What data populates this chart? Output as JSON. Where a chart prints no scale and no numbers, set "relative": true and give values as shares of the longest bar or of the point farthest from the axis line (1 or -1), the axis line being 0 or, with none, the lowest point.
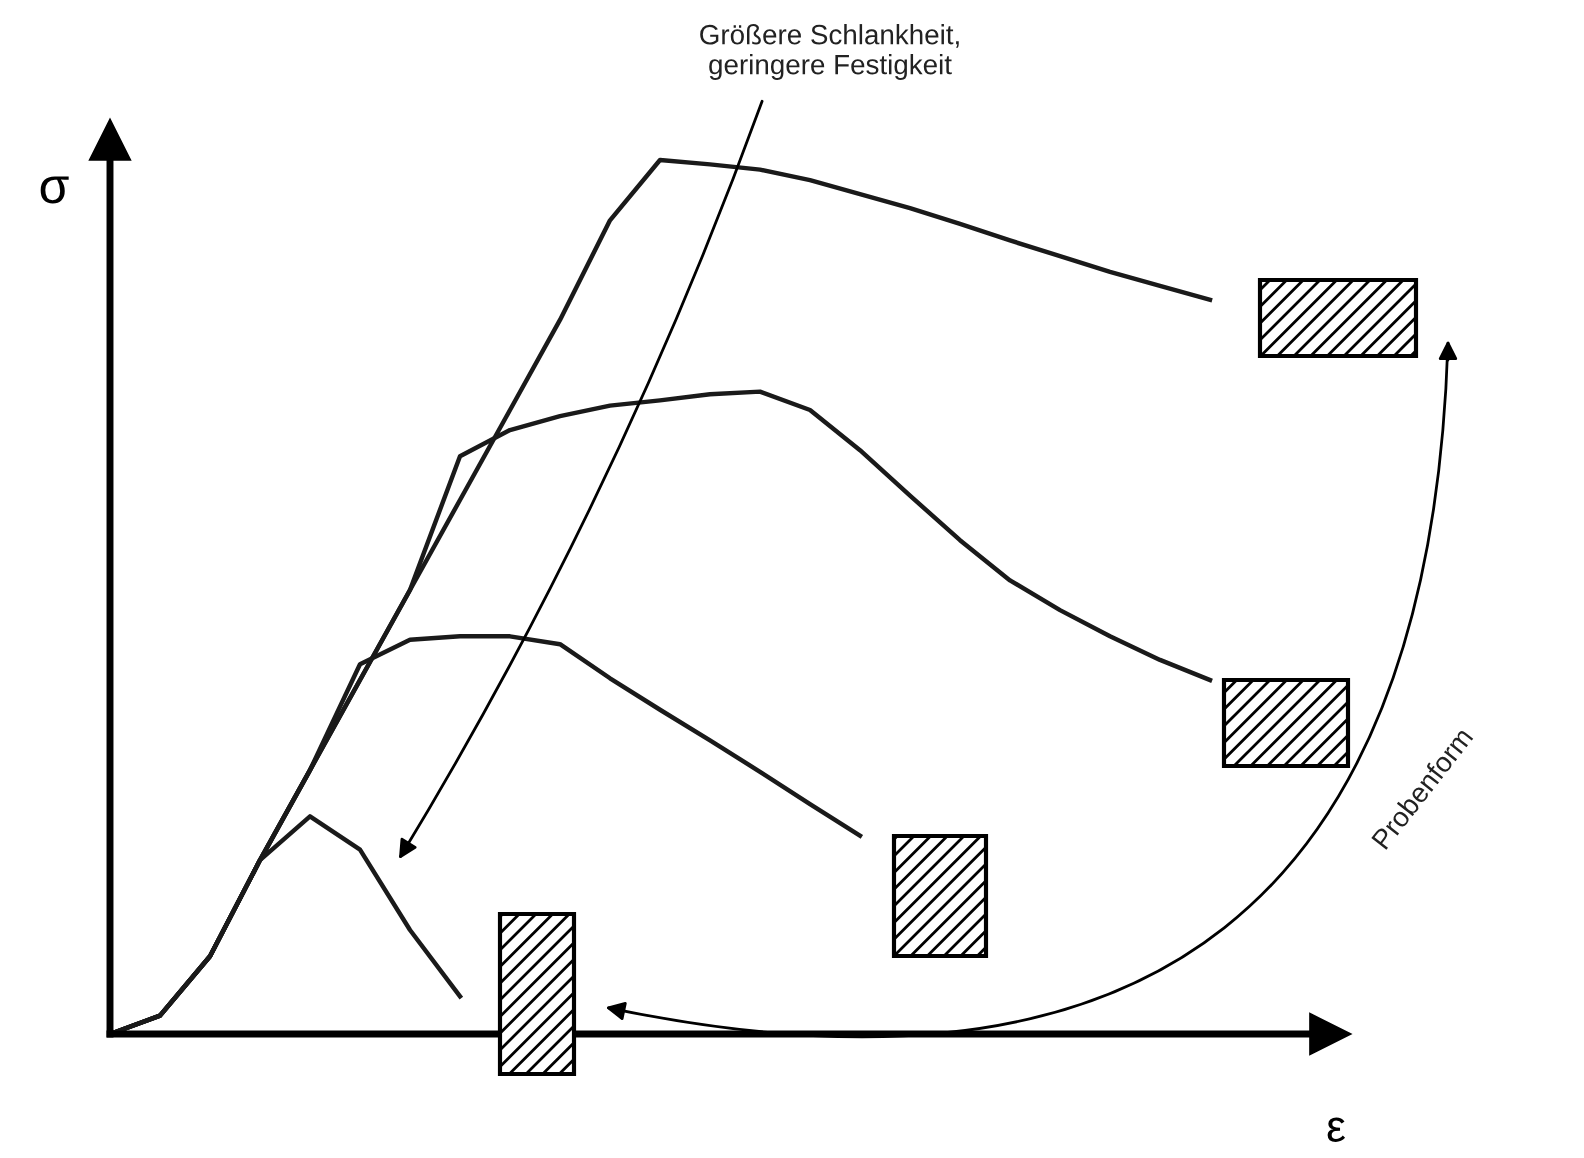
{
  "chart_data": {
    "type": "line",
    "relative": true,
    "xlabel": "ε",
    "ylabel": "σ",
    "legend": false,
    "marker": "none",
    "line_style": "solid",
    "categories": [
      null,
      null,
      null,
      null,
      null,
      null,
      null,
      null,
      null,
      null,
      null,
      null,
      null,
      null,
      null,
      null,
      null,
      null,
      null,
      null,
      null,
      null,
      null
    ],
    "series": [
      {
        "color": "#1a1a1a",
        "values": [
          0,
          0.021,
          0.089,
          0.199,
          0.302,
          0.405,
          0.508,
          0.611,
          0.714,
          0.817,
          0.931,
          1,
          0.995,
          0.989,
          0.977,
          0.961,
          0.945,
          0.927,
          0.908,
          0.89,
          0.872,
          0.856,
          0.84
        ]
      },
      {
        "color": "#1a1a1a",
        "values": [
          0,
          0.021,
          0.089,
          0.199,
          0.302,
          0.405,
          0.508,
          0.661,
          0.691,
          0.707,
          0.719,
          0.725,
          0.732,
          0.735,
          0.714,
          0.668,
          0.616,
          0.565,
          0.519,
          0.485,
          0.455,
          0.428,
          0.405
        ]
      },
      {
        "color": "#1a1a1a",
        "values": [
          0,
          0.021,
          0.089,
          0.199,
          0.302,
          0.423,
          0.451,
          0.455,
          0.455,
          0.446,
          0.407,
          0.371,
          0.336,
          0.3,
          0.263,
          0.227,
          null,
          null,
          null,
          null,
          null,
          null,
          null
        ]
      },
      {
        "color": "#1a1a1a",
        "values": [
          0,
          0.021,
          0.089,
          0.199,
          0.249,
          0.211,
          0.119,
          0.043,
          null,
          null,
          null,
          null,
          null,
          null,
          null,
          null,
          null,
          null,
          null,
          null,
          null,
          null,
          null
        ]
      }
    ],
    "annotations": [
      "Größere Schlankheit,\ngeringere Festigkeit",
      "Probenform"
    ]
  }
}
